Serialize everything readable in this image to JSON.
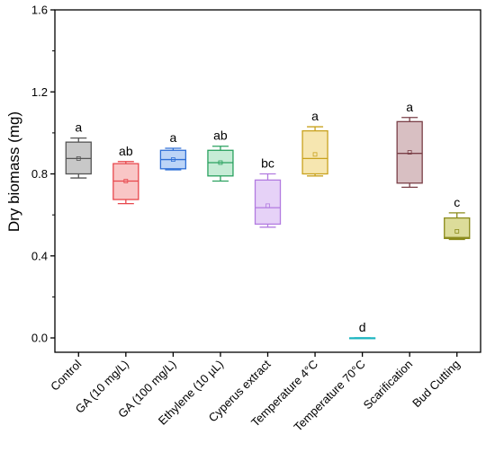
{
  "chart_data": {
    "type": "box",
    "title": "",
    "xlabel": "",
    "ylabel": "Dry biomass (mg)",
    "ylim": [
      -0.07,
      1.6
    ],
    "yticks": [
      "0.0",
      "0.4",
      "0.8",
      "1.2",
      "1.6"
    ],
    "grid": false,
    "series": [
      {
        "category": "Control",
        "whisker_min": 0.78,
        "q1": 0.8,
        "median": 0.875,
        "q3": 0.955,
        "whisker_max": 0.975,
        "mean": 0.875,
        "letter": "a",
        "stroke": "#555555",
        "fill": "#c8c8c8"
      },
      {
        "category": "GA (10 mg/L)",
        "whisker_min": 0.655,
        "q1": 0.675,
        "median": 0.765,
        "q3": 0.85,
        "whisker_max": 0.86,
        "mean": 0.765,
        "letter": "ab",
        "stroke": "#e8474c",
        "fill": "#f9c6c6"
      },
      {
        "category": "GA (100 mg/L)",
        "whisker_min": 0.82,
        "q1": 0.825,
        "median": 0.87,
        "q3": 0.915,
        "whisker_max": 0.925,
        "mean": 0.87,
        "letter": "a",
        "stroke": "#2f6fd6",
        "fill": "#bcd4f7"
      },
      {
        "category": "Ethylene (10 µL)",
        "whisker_min": 0.765,
        "q1": 0.79,
        "median": 0.855,
        "q3": 0.915,
        "whisker_max": 0.935,
        "mean": 0.855,
        "letter": "ab",
        "stroke": "#2aa15f",
        "fill": "#c6ecd6"
      },
      {
        "category": "Cyperus extract",
        "whisker_min": 0.54,
        "q1": 0.555,
        "median": 0.635,
        "q3": 0.77,
        "whisker_max": 0.8,
        "mean": 0.645,
        "letter": "bc",
        "stroke": "#b27be0",
        "fill": "#e6d2f7"
      },
      {
        "category": "Temperature 4°C",
        "whisker_min": 0.79,
        "q1": 0.8,
        "median": 0.875,
        "q3": 1.01,
        "whisker_max": 1.03,
        "mean": 0.895,
        "letter": "a",
        "stroke": "#c9a21e",
        "fill": "#f6e6b0"
      },
      {
        "category": "Temperature 70°C",
        "whisker_min": 0.0,
        "q1": 0.0,
        "median": 0.0,
        "q3": 0.0,
        "whisker_max": 0.0,
        "mean": 0.0,
        "letter": "d",
        "stroke": "#1bb5bf",
        "fill": "#c6eef0"
      },
      {
        "category": "Scarification",
        "whisker_min": 0.735,
        "q1": 0.755,
        "median": 0.9,
        "q3": 1.055,
        "whisker_max": 1.075,
        "mean": 0.905,
        "letter": "a",
        "stroke": "#7a3f47",
        "fill": "#d8bfc2"
      },
      {
        "category": "Bud Cutting",
        "whisker_min": 0.48,
        "q1": 0.485,
        "median": 0.49,
        "q3": 0.585,
        "whisker_max": 0.61,
        "mean": 0.52,
        "letter": "c",
        "stroke": "#8a8a1a",
        "fill": "#dcdc9a"
      }
    ]
  }
}
